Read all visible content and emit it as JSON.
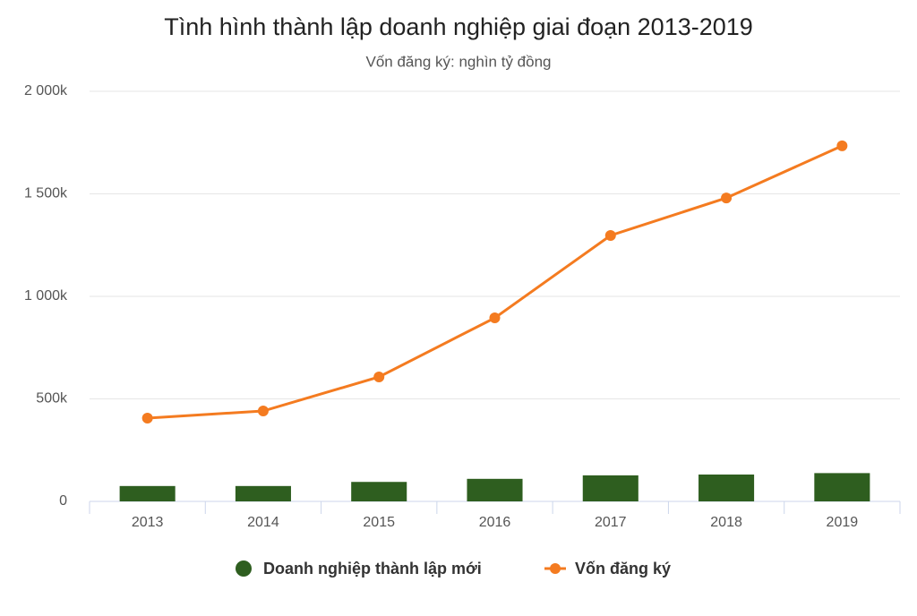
{
  "chart_data": {
    "type": "combo",
    "title": "Tình hình thành lập doanh nghiệp giai đoạn 2013-2019",
    "subtitle": "Vốn đăng ký: nghìn tỷ đồng",
    "categories": [
      "2013",
      "2014",
      "2015",
      "2016",
      "2017",
      "2018",
      "2019"
    ],
    "series": [
      {
        "name": "Doanh nghiệp thành lập mới",
        "type": "bar",
        "color": "#2e5e1f",
        "values": [
          75000,
          75000,
          95000,
          110000,
          127000,
          131000,
          138000
        ]
      },
      {
        "name": "Vốn đăng ký",
        "type": "line",
        "color": "#f47b20",
        "values": [
          406000,
          441000,
          607000,
          895000,
          1297000,
          1480000,
          1734000
        ]
      }
    ],
    "ylim": [
      0,
      2000000
    ],
    "yticks": [
      0,
      {
        "value": 500000,
        "label": "500k"
      },
      {
        "value": 1000000,
        "label": "1 000k"
      },
      {
        "value": 1500000,
        "label": "1 500k"
      },
      {
        "value": 2000000,
        "label": "2 000k"
      }
    ],
    "grid": true
  }
}
